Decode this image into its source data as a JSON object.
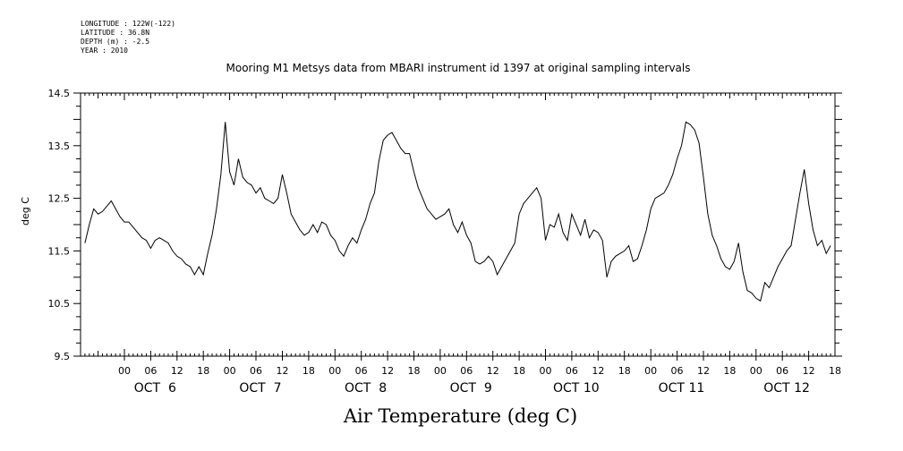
{
  "meta": {
    "longitude": "LONGITUDE : 122W(-122)",
    "latitude": "LATITUDE : 36.8N",
    "depth": "DEPTH (m) : -2.5",
    "year": "YEAR : 2010"
  },
  "chart_data": {
    "type": "line",
    "title": "Mooring M1 Metsys data from MBARI instrument id 1397 at original sampling intervals",
    "bottom_title": "Air Temperature (deg C)",
    "ylabel": "deg C",
    "xlabel": "",
    "ylim": [
      9.5,
      14.5
    ],
    "xlim": [
      -10,
      162
    ],
    "x_unit": "hours since Oct 6 00:00",
    "yticks": [
      {
        "v": 9.5,
        "label": "9.5"
      },
      {
        "v": 10.5,
        "label": "10.5"
      },
      {
        "v": 11.5,
        "label": "11.5"
      },
      {
        "v": 12.5,
        "label": "12.5"
      },
      {
        "v": 13.5,
        "label": "13.5"
      },
      {
        "v": 14.5,
        "label": "14.5"
      }
    ],
    "hour_labels": [
      "00",
      "06",
      "12",
      "18",
      "00",
      "06",
      "12",
      "18",
      "00",
      "06",
      "12",
      "18",
      "00",
      "06",
      "12",
      "18",
      "00",
      "06",
      "12",
      "18",
      "00",
      "06",
      "12",
      "18",
      "00",
      "06",
      "12",
      "18"
    ],
    "day_labels": [
      "OCT  6",
      "OCT  7",
      "OCT  8",
      "OCT  9",
      "OCT 10",
      "OCT 11",
      "OCT 12"
    ],
    "grid": false,
    "series": [
      {
        "values": [
          [
            -9,
            11.65
          ],
          [
            -8,
            12.0
          ],
          [
            -7,
            12.3
          ],
          [
            -6,
            12.2
          ],
          [
            -5,
            12.25
          ],
          [
            -4,
            12.35
          ],
          [
            -3,
            12.45
          ],
          [
            -2,
            12.3
          ],
          [
            -1,
            12.15
          ],
          [
            0,
            12.05
          ],
          [
            1,
            12.05
          ],
          [
            2,
            11.95
          ],
          [
            3,
            11.85
          ],
          [
            4,
            11.75
          ],
          [
            5,
            11.7
          ],
          [
            6,
            11.55
          ],
          [
            7,
            11.7
          ],
          [
            8,
            11.75
          ],
          [
            9,
            11.7
          ],
          [
            10,
            11.65
          ],
          [
            11,
            11.5
          ],
          [
            12,
            11.4
          ],
          [
            13,
            11.35
          ],
          [
            14,
            11.25
          ],
          [
            15,
            11.2
          ],
          [
            16,
            11.05
          ],
          [
            17,
            11.2
          ],
          [
            18,
            11.05
          ],
          [
            19,
            11.45
          ],
          [
            20,
            11.8
          ],
          [
            21,
            12.3
          ],
          [
            22,
            12.95
          ],
          [
            23,
            13.95
          ],
          [
            24,
            13.0
          ],
          [
            25,
            12.75
          ],
          [
            26,
            13.25
          ],
          [
            27,
            12.9
          ],
          [
            28,
            12.8
          ],
          [
            29,
            12.75
          ],
          [
            30,
            12.6
          ],
          [
            31,
            12.7
          ],
          [
            32,
            12.5
          ],
          [
            33,
            12.45
          ],
          [
            34,
            12.4
          ],
          [
            35,
            12.5
          ],
          [
            36,
            12.95
          ],
          [
            37,
            12.6
          ],
          [
            38,
            12.2
          ],
          [
            39,
            12.05
          ],
          [
            40,
            11.9
          ],
          [
            41,
            11.8
          ],
          [
            42,
            11.85
          ],
          [
            43,
            12.0
          ],
          [
            44,
            11.85
          ],
          [
            45,
            12.05
          ],
          [
            46,
            12.0
          ],
          [
            47,
            11.8
          ],
          [
            48,
            11.7
          ],
          [
            49,
            11.5
          ],
          [
            50,
            11.4
          ],
          [
            51,
            11.6
          ],
          [
            52,
            11.75
          ],
          [
            53,
            11.65
          ],
          [
            54,
            11.9
          ],
          [
            55,
            12.1
          ],
          [
            56,
            12.4
          ],
          [
            57,
            12.6
          ],
          [
            58,
            13.2
          ],
          [
            59,
            13.6
          ],
          [
            60,
            13.7
          ],
          [
            61,
            13.75
          ],
          [
            62,
            13.6
          ],
          [
            63,
            13.45
          ],
          [
            64,
            13.35
          ],
          [
            65,
            13.35
          ],
          [
            66,
            13.0
          ],
          [
            67,
            12.7
          ],
          [
            68,
            12.5
          ],
          [
            69,
            12.3
          ],
          [
            70,
            12.2
          ],
          [
            71,
            12.1
          ],
          [
            72,
            12.15
          ],
          [
            73,
            12.2
          ],
          [
            74,
            12.3
          ],
          [
            75,
            12.0
          ],
          [
            76,
            11.85
          ],
          [
            77,
            12.05
          ],
          [
            78,
            11.8
          ],
          [
            79,
            11.65
          ],
          [
            80,
            11.3
          ],
          [
            81,
            11.25
          ],
          [
            82,
            11.3
          ],
          [
            83,
            11.4
          ],
          [
            84,
            11.3
          ],
          [
            85,
            11.05
          ],
          [
            86,
            11.2
          ],
          [
            87,
            11.35
          ],
          [
            88,
            11.5
          ],
          [
            89,
            11.65
          ],
          [
            90,
            12.2
          ],
          [
            91,
            12.4
          ],
          [
            92,
            12.5
          ],
          [
            93,
            12.6
          ],
          [
            94,
            12.7
          ],
          [
            95,
            12.5
          ],
          [
            96,
            11.7
          ],
          [
            97,
            12.0
          ],
          [
            98,
            11.95
          ],
          [
            99,
            12.2
          ],
          [
            100,
            11.85
          ],
          [
            101,
            11.7
          ],
          [
            102,
            12.2
          ],
          [
            103,
            12.0
          ],
          [
            104,
            11.8
          ],
          [
            105,
            12.1
          ],
          [
            106,
            11.75
          ],
          [
            107,
            11.9
          ],
          [
            108,
            11.85
          ],
          [
            109,
            11.7
          ],
          [
            110,
            11.0
          ],
          [
            111,
            11.3
          ],
          [
            112,
            11.4
          ],
          [
            113,
            11.45
          ],
          [
            114,
            11.5
          ],
          [
            115,
            11.6
          ],
          [
            116,
            11.3
          ],
          [
            117,
            11.35
          ],
          [
            118,
            11.6
          ],
          [
            119,
            11.9
          ],
          [
            120,
            12.3
          ],
          [
            121,
            12.5
          ],
          [
            122,
            12.55
          ],
          [
            123,
            12.6
          ],
          [
            124,
            12.75
          ],
          [
            125,
            12.95
          ],
          [
            126,
            13.25
          ],
          [
            127,
            13.5
          ],
          [
            128,
            13.95
          ],
          [
            129,
            13.9
          ],
          [
            130,
            13.8
          ],
          [
            131,
            13.55
          ],
          [
            132,
            12.9
          ],
          [
            133,
            12.2
          ],
          [
            134,
            11.8
          ],
          [
            135,
            11.6
          ],
          [
            136,
            11.35
          ],
          [
            137,
            11.2
          ],
          [
            138,
            11.15
          ],
          [
            139,
            11.3
          ],
          [
            140,
            11.65
          ],
          [
            141,
            11.1
          ],
          [
            142,
            10.75
          ],
          [
            143,
            10.7
          ],
          [
            144,
            10.6
          ],
          [
            145,
            10.55
          ],
          [
            146,
            10.9
          ],
          [
            147,
            10.8
          ],
          [
            148,
            11.0
          ],
          [
            149,
            11.2
          ],
          [
            150,
            11.35
          ],
          [
            151,
            11.5
          ],
          [
            152,
            11.6
          ],
          [
            153,
            12.1
          ],
          [
            154,
            12.6
          ],
          [
            155,
            13.05
          ],
          [
            156,
            12.4
          ],
          [
            157,
            11.9
          ],
          [
            158,
            11.6
          ],
          [
            159,
            11.7
          ],
          [
            160,
            11.45
          ],
          [
            161,
            11.6
          ]
        ]
      }
    ]
  }
}
